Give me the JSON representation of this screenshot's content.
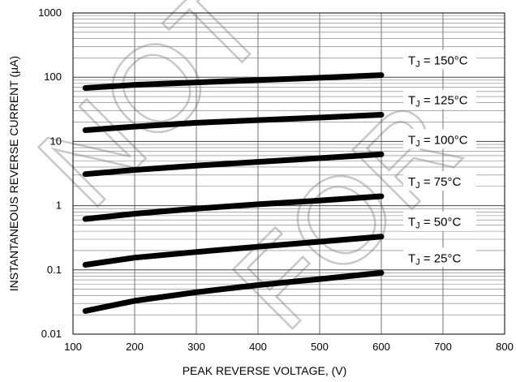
{
  "chart_data": {
    "type": "line",
    "title": "",
    "xlabel": "PEAK REVERSE VOLTAGE, (V)",
    "ylabel": "INSTANTANEOUS REVERSE CURRENT (µA)",
    "xlim": [
      100,
      800
    ],
    "ylim": [
      0.01,
      1000
    ],
    "yscale": "log",
    "grid": true,
    "x_ticks": [
      100,
      200,
      300,
      400,
      500,
      600,
      700,
      800
    ],
    "y_ticks": [
      0.01,
      0.1,
      1,
      10,
      100,
      1000
    ],
    "x_tick_labels": [
      "100",
      "200",
      "300",
      "400",
      "500",
      "600",
      "700",
      "800"
    ],
    "y_tick_labels": [
      "0.01",
      "0.1",
      "1",
      "10",
      "100",
      "1000"
    ],
    "x": [
      120,
      200,
      300,
      400,
      500,
      600
    ],
    "series": [
      {
        "name": "TJ = 150°C",
        "label_main": "T",
        "label_sub": "J",
        "label_rest": " = 150°C",
        "values": [
          68,
          76,
          83,
          90,
          98,
          108
        ]
      },
      {
        "name": "TJ = 125°C",
        "label_main": "T",
        "label_sub": "J",
        "label_rest": " = 125°C",
        "values": [
          15,
          17,
          19.5,
          21.5,
          23.5,
          26
        ]
      },
      {
        "name": "TJ = 100°C",
        "label_main": "T",
        "label_sub": "J",
        "label_rest": " = 100°C",
        "values": [
          3.1,
          3.6,
          4.2,
          4.8,
          5.5,
          6.3
        ]
      },
      {
        "name": "TJ = 75°C",
        "label_main": "T",
        "label_sub": "J",
        "label_rest": " = 75°C",
        "values": [
          0.62,
          0.75,
          0.9,
          1.05,
          1.2,
          1.4
        ]
      },
      {
        "name": "TJ = 50°C",
        "label_main": "T",
        "label_sub": "J",
        "label_rest": " = 50°C",
        "values": [
          0.12,
          0.155,
          0.19,
          0.23,
          0.275,
          0.33
        ]
      },
      {
        "name": "TJ = 25°C",
        "label_main": "T",
        "label_sub": "J",
        "label_rest": " = 25°C",
        "values": [
          0.023,
          0.033,
          0.045,
          0.058,
          0.072,
          0.09
        ]
      }
    ],
    "watermark": "NOT FOR"
  }
}
